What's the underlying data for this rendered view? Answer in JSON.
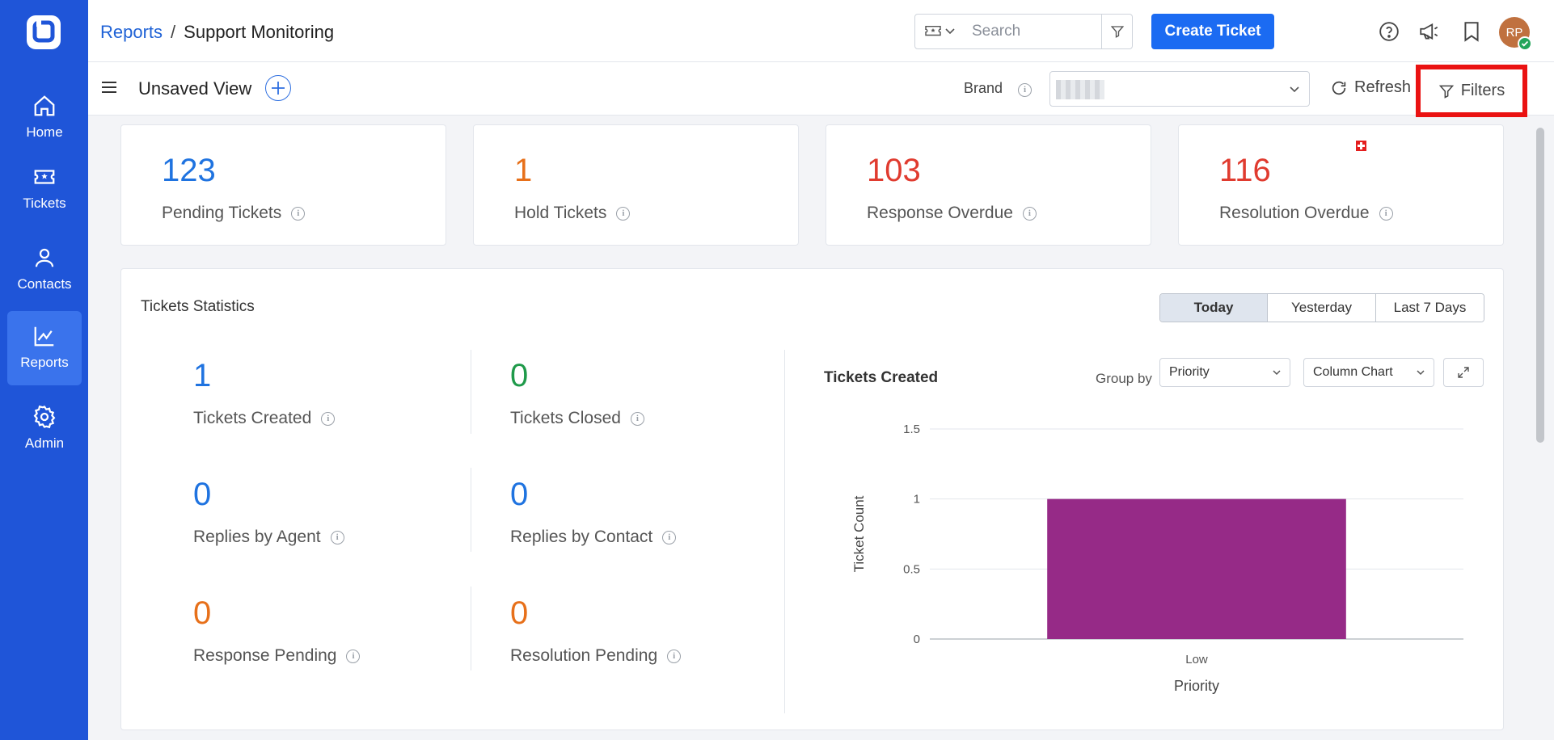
{
  "nav": {
    "items": [
      {
        "label": "Home",
        "icon": "home-icon"
      },
      {
        "label": "Tickets",
        "icon": "ticket-icon"
      },
      {
        "label": "Contacts",
        "icon": "user-icon"
      },
      {
        "label": "Reports",
        "icon": "chart-icon",
        "active": true
      },
      {
        "label": "Admin",
        "icon": "gear-icon"
      }
    ]
  },
  "header": {
    "breadcrumb_link": "Reports",
    "breadcrumb_separator": "/",
    "breadcrumb_current": "Support Monitoring",
    "search_placeholder": "Search",
    "create_button": "Create Ticket",
    "avatar_initials": "RP"
  },
  "subbar": {
    "view_title": "Unsaved View",
    "brand_label": "Brand",
    "refresh_label": "Refresh",
    "filters_label": "Filters"
  },
  "cards": [
    {
      "value": "123",
      "label": "Pending Tickets",
      "color": "#1f73e0"
    },
    {
      "value": "1",
      "label": "Hold Tickets",
      "color": "#e7701a"
    },
    {
      "value": "103",
      "label": "Response Overdue",
      "color": "#e03b2f"
    },
    {
      "value": "116",
      "label": "Resolution Overdue",
      "color": "#e03b2f"
    }
  ],
  "stats": {
    "title": "Tickets Statistics",
    "ranges": [
      "Today",
      "Yesterday",
      "Last 7 Days"
    ],
    "active_range": "Today",
    "metrics": [
      {
        "value": "1",
        "label": "Tickets Created",
        "color": "#1f73e0"
      },
      {
        "value": "0",
        "label": "Tickets Closed",
        "color": "#1f9a4a"
      },
      {
        "value": "0",
        "label": "Replies by Agent",
        "color": "#1f73e0"
      },
      {
        "value": "0",
        "label": "Replies by Contact",
        "color": "#1f73e0"
      },
      {
        "value": "0",
        "label": "Response Pending",
        "color": "#e7701a"
      },
      {
        "value": "0",
        "label": "Resolution Pending",
        "color": "#e7701a"
      }
    ]
  },
  "chart_panel": {
    "title": "Tickets Created",
    "groupby_label": "Group by",
    "groupby_value": "Priority",
    "chart_type_value": "Column Chart"
  },
  "chart_data": {
    "type": "bar",
    "categories": [
      "Low"
    ],
    "values": [
      1
    ],
    "xlabel": "Priority",
    "ylabel": "Ticket Count",
    "ylim": [
      0,
      1.5
    ],
    "yticks": [
      "0",
      "0.5",
      "1",
      "1.5"
    ],
    "bar_color": "#962a87",
    "grid": true
  }
}
